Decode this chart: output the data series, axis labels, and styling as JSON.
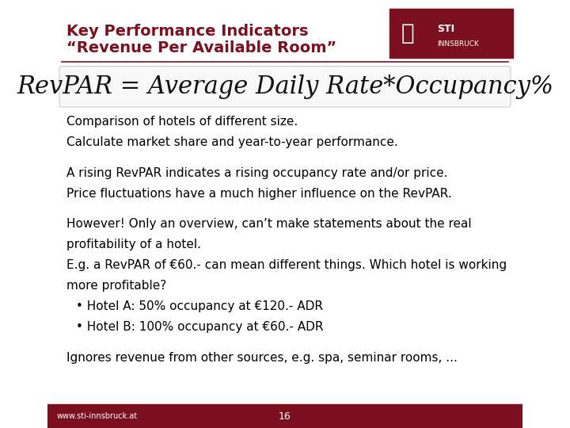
{
  "title_line1": "Key Performance Indicators",
  "title_line2": "“Revenue Per Available Room”",
  "title_color": "#7B1020",
  "formula": "RevPAR = Average Daily Rate*Occupancy%",
  "formula_font": "serif",
  "formula_fontsize": 22,
  "body_color": "#000000",
  "body_fontsize": 11,
  "body_font": "sans-serif",
  "line1": "Comparison of hotels of different size.",
  "line2": "Calculate market share and year-to-year performance.",
  "line3": "A rising RevPAR indicates a rising occupancy rate and/or price.",
  "line4": "Price fluctuations have a much higher influence on the RevPAR.",
  "line5": "However! Only an overview, can’t make statements about the real",
  "line6": "profitability of a hotel.",
  "line7": "E.g. a RevPAR of €60.- can mean different things. Which hotel is working",
  "line8": "more profitable?",
  "bullet1": "Hotel A: 50% occupancy at €120.- ADR",
  "bullet2": "Hotel B: 100% occupancy at €60.- ADR",
  "line9": "Ignores revenue from other sources, e.g. spa, seminar rooms, ...",
  "footer_text": "www.sti-innsbruck.at",
  "footer_page": "16",
  "footer_bg": "#7B1020",
  "footer_text_color": "#ffffff",
  "bg_color": "#ffffff",
  "logo_bg": "#7B1020",
  "logo_text": "STI INNSBRUCK",
  "separator_color": "#7B1020",
  "title_fontsize": 14
}
